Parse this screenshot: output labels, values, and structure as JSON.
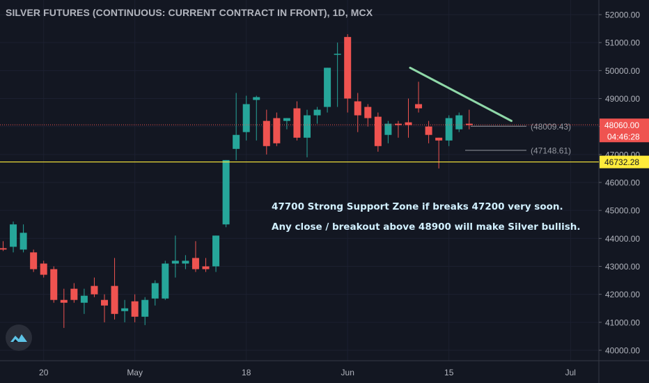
{
  "header": {
    "title": "SILVER FUTURES (CONTINUOUS: CURRENT CONTRACT IN FRONT), 1D, MCX"
  },
  "annotations": {
    "line1": "47700 Strong Support Zone if breaks 47200 very soon.",
    "line2": "Any close / breakout above 48900 will make Silver bullish."
  },
  "colors": {
    "up": "#26a69a",
    "down": "#ef5350",
    "support": "#ffeb3b",
    "trend": "#8fd8a8",
    "background": "#131722"
  },
  "icons": {
    "logo": "tradingview-logo-icon"
  },
  "chart_data": {
    "type": "candlestick",
    "title": "SILVER FUTURES (CONTINUOUS: CURRENT CONTRACT IN FRONT), 1D, MCX",
    "ylim": [
      39800,
      52300
    ],
    "y_ticks": [
      "40000.00",
      "41000.00",
      "42000.00",
      "43000.00",
      "44000.00",
      "45000.00",
      "46000.00",
      "47000.00",
      "48000.00",
      "49000.00",
      "50000.00",
      "51000.00",
      "52000.00"
    ],
    "x_ticks": [
      {
        "label": "20",
        "i": 4
      },
      {
        "label": "May",
        "i": 13
      },
      {
        "label": "18",
        "i": 24
      },
      {
        "label": "Jun",
        "i": 34
      },
      {
        "label": "15",
        "i": 44
      },
      {
        "label": "Jul",
        "i": 56
      }
    ],
    "candles": [
      {
        "o": 43650,
        "h": 43900,
        "l": 43550,
        "c": 43600
      },
      {
        "o": 43700,
        "h": 44600,
        "l": 43500,
        "c": 44500
      },
      {
        "o": 43600,
        "h": 44500,
        "l": 43500,
        "c": 44200
      },
      {
        "o": 43500,
        "h": 43600,
        "l": 42800,
        "c": 42900
      },
      {
        "o": 43100,
        "h": 43200,
        "l": 42600,
        "c": 42700
      },
      {
        "o": 42900,
        "h": 43000,
        "l": 41700,
        "c": 41800
      },
      {
        "o": 41800,
        "h": 42200,
        "l": 40800,
        "c": 41700
      },
      {
        "o": 42200,
        "h": 42400,
        "l": 41700,
        "c": 41800
      },
      {
        "o": 41700,
        "h": 42200,
        "l": 41300,
        "c": 41950
      },
      {
        "o": 42300,
        "h": 42600,
        "l": 41900,
        "c": 42000
      },
      {
        "o": 41800,
        "h": 42000,
        "l": 41000,
        "c": 41600
      },
      {
        "o": 42300,
        "h": 43300,
        "l": 41100,
        "c": 41300
      },
      {
        "o": 41400,
        "h": 41800,
        "l": 41000,
        "c": 41500
      },
      {
        "o": 41750,
        "h": 42000,
        "l": 41000,
        "c": 41200
      },
      {
        "o": 41200,
        "h": 41900,
        "l": 40900,
        "c": 41800
      },
      {
        "o": 41850,
        "h": 42500,
        "l": 41600,
        "c": 42400
      },
      {
        "o": 41850,
        "h": 43200,
        "l": 41800,
        "c": 43100
      },
      {
        "o": 43100,
        "h": 44100,
        "l": 42600,
        "c": 43200
      },
      {
        "o": 43100,
        "h": 43400,
        "l": 42900,
        "c": 43200
      },
      {
        "o": 43300,
        "h": 43900,
        "l": 42800,
        "c": 42900
      },
      {
        "o": 43000,
        "h": 43300,
        "l": 42800,
        "c": 42900
      },
      {
        "o": 43000,
        "h": 44100,
        "l": 42800,
        "c": 44100
      },
      {
        "o": 44500,
        "h": 46800,
        "l": 44400,
        "c": 46800
      },
      {
        "o": 47200,
        "h": 49200,
        "l": 46800,
        "c": 47700
      },
      {
        "o": 47800,
        "h": 49100,
        "l": 47500,
        "c": 48800
      },
      {
        "o": 48950,
        "h": 49100,
        "l": 47500,
        "c": 49050
      },
      {
        "o": 48200,
        "h": 48600,
        "l": 47000,
        "c": 47300
      },
      {
        "o": 48300,
        "h": 48500,
        "l": 47300,
        "c": 47400
      },
      {
        "o": 48200,
        "h": 48300,
        "l": 47900,
        "c": 48300
      },
      {
        "o": 48650,
        "h": 48900,
        "l": 47500,
        "c": 47600
      },
      {
        "o": 47600,
        "h": 48600,
        "l": 46900,
        "c": 48400
      },
      {
        "o": 48400,
        "h": 48700,
        "l": 48100,
        "c": 48600
      },
      {
        "o": 48700,
        "h": 50100,
        "l": 48500,
        "c": 50100
      },
      {
        "o": 50600,
        "h": 51000,
        "l": 48700,
        "c": 50600
      },
      {
        "o": 51200,
        "h": 51300,
        "l": 48500,
        "c": 49000
      },
      {
        "o": 48900,
        "h": 49200,
        "l": 47800,
        "c": 48400
      },
      {
        "o": 48700,
        "h": 48800,
        "l": 48000,
        "c": 48300
      },
      {
        "o": 48350,
        "h": 48500,
        "l": 47100,
        "c": 47300
      },
      {
        "o": 47700,
        "h": 48200,
        "l": 47400,
        "c": 48100
      },
      {
        "o": 48100,
        "h": 48200,
        "l": 47600,
        "c": 48050
      },
      {
        "o": 48150,
        "h": 49000,
        "l": 47600,
        "c": 48050
      },
      {
        "o": 48800,
        "h": 49600,
        "l": 48500,
        "c": 48650
      },
      {
        "o": 48000,
        "h": 48200,
        "l": 47400,
        "c": 47700
      },
      {
        "o": 47600,
        "h": 47600,
        "l": 46500,
        "c": 47500
      },
      {
        "o": 47500,
        "h": 48400,
        "l": 47300,
        "c": 48300
      },
      {
        "o": 47900,
        "h": 48500,
        "l": 47800,
        "c": 48400
      },
      {
        "o": 48100,
        "h": 48600,
        "l": 47900,
        "c": 48050
      }
    ],
    "support_level": 46732.28,
    "last_price": 48060.0,
    "countdown": "04:46:28",
    "levels": [
      {
        "value": 48009.43,
        "label": "(48009.43)"
      },
      {
        "value": 47148.61,
        "label": "(47148.61)"
      }
    ],
    "trendline": [
      {
        "i": 39,
        "price": 50100
      },
      {
        "i": 49,
        "price": 48200
      }
    ],
    "price_labels": [
      "48060.00",
      "46732.28"
    ]
  }
}
